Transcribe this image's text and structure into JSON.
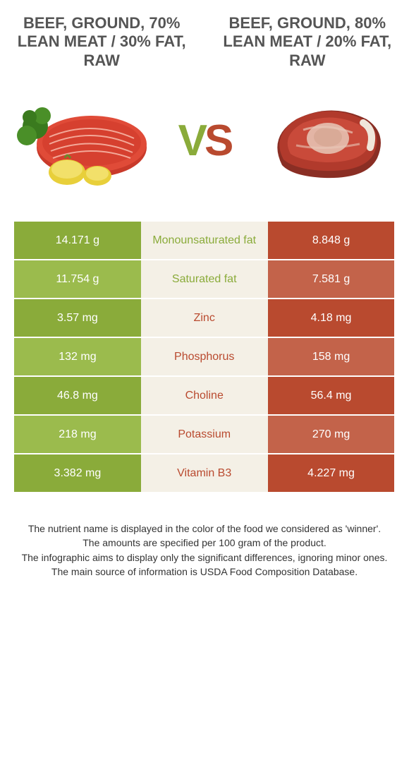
{
  "colors": {
    "left_primary": "#8aab3a",
    "left_alt": "#9bbb4d",
    "right_primary": "#b94a2f",
    "right_alt": "#c3634a",
    "mid_bg": "#f4f0e6",
    "text_dark": "#555555"
  },
  "left_food": {
    "title": "BEEF, GROUND, 70% LEAN MEAT / 30% FAT, RAW"
  },
  "right_food": {
    "title": "BEEF, GROUND, 80% LEAN MEAT / 20% FAT, RAW"
  },
  "vs_label": {
    "v": "V",
    "s": "S"
  },
  "nutrients": [
    {
      "label": "Monounsaturated fat",
      "left": "14.171 g",
      "right": "8.848 g",
      "winner": "left"
    },
    {
      "label": "Saturated fat",
      "left": "11.754 g",
      "right": "7.581 g",
      "winner": "left"
    },
    {
      "label": "Zinc",
      "left": "3.57 mg",
      "right": "4.18 mg",
      "winner": "right"
    },
    {
      "label": "Phosphorus",
      "left": "132 mg",
      "right": "158 mg",
      "winner": "right"
    },
    {
      "label": "Choline",
      "left": "46.8 mg",
      "right": "56.4 mg",
      "winner": "right"
    },
    {
      "label": "Potassium",
      "left": "218 mg",
      "right": "270 mg",
      "winner": "right"
    },
    {
      "label": "Vitamin B3",
      "left": "3.382 mg",
      "right": "4.227 mg",
      "winner": "right"
    }
  ],
  "footer": {
    "line1": "The nutrient name is displayed in the color of the food we considered as 'winner'.",
    "line2": "The amounts are specified per 100 gram of the product.",
    "line3": "The infographic aims to display only the significant differences, ignoring minor ones.",
    "line4": "The main source of information is USDA Food Composition Database."
  }
}
